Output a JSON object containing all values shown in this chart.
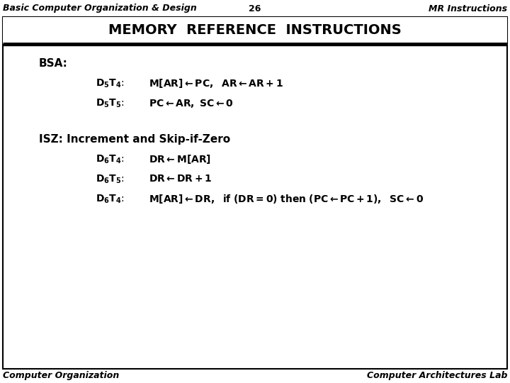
{
  "header_left": "Basic Computer Organization & Design",
  "header_center": "26",
  "header_right": "MR Instructions",
  "title": "MEMORY  REFERENCE  INSTRUCTIONS",
  "footer_left": "Computer Organization",
  "footer_right": "Computer Architectures Lab",
  "bg_color": "#ffffff",
  "border_color": "#000000",
  "text_color": "#000000",
  "header_fontsize": 9,
  "title_fontsize": 14,
  "content_fontsize": 10,
  "footer_fontsize": 9
}
